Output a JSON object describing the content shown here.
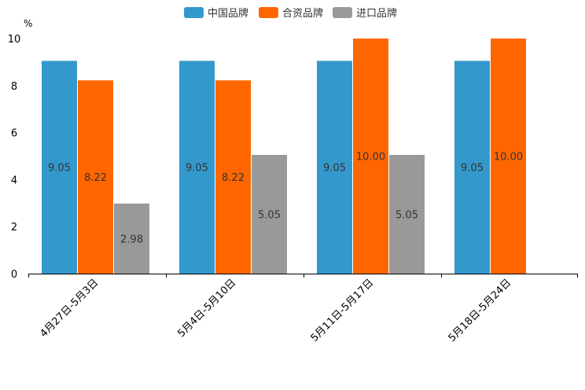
{
  "chart_data": {
    "type": "bar",
    "unit": "%",
    "categories": [
      "4月27日-5月3日",
      "5月4日-5月10日",
      "5月11日-5月17日",
      "5月18日-5月24日"
    ],
    "series": [
      {
        "name": "中国品牌",
        "color": "#3399cc",
        "values": [
          9.05,
          9.05,
          9.05,
          9.05
        ],
        "labels": [
          "9.05",
          "9.05",
          "9.05",
          "9.05"
        ]
      },
      {
        "name": "合资品牌",
        "color": "#ff6600",
        "values": [
          8.22,
          8.22,
          10.0,
          10.0
        ],
        "labels": [
          "8.22",
          "8.22",
          "10.00",
          "10.00"
        ]
      },
      {
        "name": "进口品牌",
        "color": "#999999",
        "values": [
          2.98,
          5.05,
          5.05,
          null
        ],
        "labels": [
          "2.98",
          "5.05",
          "5.05",
          null
        ]
      }
    ],
    "yticks": [
      "0",
      "2",
      "4",
      "6",
      "8",
      "10"
    ],
    "ylim": [
      0,
      10
    ],
    "legend_position": "top-center"
  }
}
